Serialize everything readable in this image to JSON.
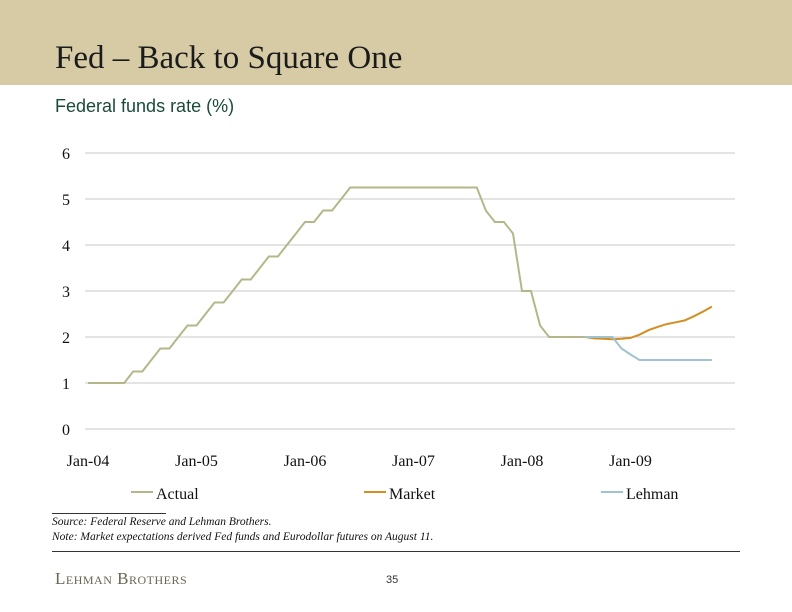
{
  "slide": {
    "title": "Fed – Back to Square One",
    "source_note": "Source: Federal Reserve and Lehman Brothers.",
    "market_note": "Note: Market expectations derived Fed funds and Eurodollar futures on August 11.",
    "logo_text": "Lehman Brothers",
    "page_number": "35"
  },
  "colors": {
    "header_band": "#d6cba5",
    "actual": "#b5b78a",
    "market": "#d18f22",
    "lehman": "#9fc3cf",
    "gridline": "#c8c8c8"
  },
  "chart_data": {
    "type": "line",
    "title": "Federal funds rate (%)",
    "ylim": [
      0,
      6
    ],
    "yticks": [
      "0",
      "1",
      "2",
      "3",
      "4",
      "5",
      "6"
    ],
    "xticks": [
      "Jan-04",
      "Jan-05",
      "Jan-06",
      "Jan-07",
      "Jan-08",
      "Jan-09"
    ],
    "xlim": [
      "2004-01",
      "2009-12"
    ],
    "grid": true,
    "legend_position": "bottom",
    "series": [
      {
        "name": "Actual",
        "color": "#b5b78a",
        "points": [
          [
            "2004-01",
            1.0
          ],
          [
            "2004-05",
            1.0
          ],
          [
            "2004-06",
            1.25
          ],
          [
            "2004-07",
            1.25
          ],
          [
            "2004-08",
            1.5
          ],
          [
            "2004-09",
            1.75
          ],
          [
            "2004-10",
            1.75
          ],
          [
            "2004-11",
            2.0
          ],
          [
            "2004-12",
            2.25
          ],
          [
            "2005-01",
            2.25
          ],
          [
            "2005-02",
            2.5
          ],
          [
            "2005-03",
            2.75
          ],
          [
            "2005-04",
            2.75
          ],
          [
            "2005-05",
            3.0
          ],
          [
            "2005-06",
            3.25
          ],
          [
            "2005-07",
            3.25
          ],
          [
            "2005-08",
            3.5
          ],
          [
            "2005-09",
            3.75
          ],
          [
            "2005-10",
            3.75
          ],
          [
            "2005-11",
            4.0
          ],
          [
            "2005-12",
            4.25
          ],
          [
            "2006-01",
            4.5
          ],
          [
            "2006-02",
            4.5
          ],
          [
            "2006-03",
            4.75
          ],
          [
            "2006-04",
            4.75
          ],
          [
            "2006-05",
            5.0
          ],
          [
            "2006-06",
            5.25
          ],
          [
            "2007-08",
            5.25
          ],
          [
            "2007-09",
            4.75
          ],
          [
            "2007-10",
            4.5
          ],
          [
            "2007-11",
            4.5
          ],
          [
            "2007-12",
            4.25
          ],
          [
            "2008-01",
            3.0
          ],
          [
            "2008-02",
            3.0
          ],
          [
            "2008-03",
            2.25
          ],
          [
            "2008-04",
            2.0
          ],
          [
            "2008-08",
            2.0
          ]
        ]
      },
      {
        "name": "Market",
        "color": "#d18f22",
        "points": [
          [
            "2008-08",
            2.0
          ],
          [
            "2008-09",
            1.97
          ],
          [
            "2008-10",
            1.96
          ],
          [
            "2008-11",
            1.95
          ],
          [
            "2008-12",
            1.96
          ],
          [
            "2009-01",
            1.98
          ],
          [
            "2009-02",
            2.05
          ],
          [
            "2009-03",
            2.15
          ],
          [
            "2009-04",
            2.22
          ],
          [
            "2009-05",
            2.28
          ],
          [
            "2009-06",
            2.32
          ],
          [
            "2009-07",
            2.36
          ],
          [
            "2009-08",
            2.45
          ],
          [
            "2009-09",
            2.55
          ],
          [
            "2009-10",
            2.66
          ]
        ]
      },
      {
        "name": "Lehman",
        "color": "#9fc3cf",
        "points": [
          [
            "2008-08",
            2.0
          ],
          [
            "2008-11",
            2.0
          ],
          [
            "2008-12",
            1.75
          ],
          [
            "2009-01",
            1.62
          ],
          [
            "2009-02",
            1.5
          ],
          [
            "2009-10",
            1.5
          ]
        ]
      }
    ]
  }
}
